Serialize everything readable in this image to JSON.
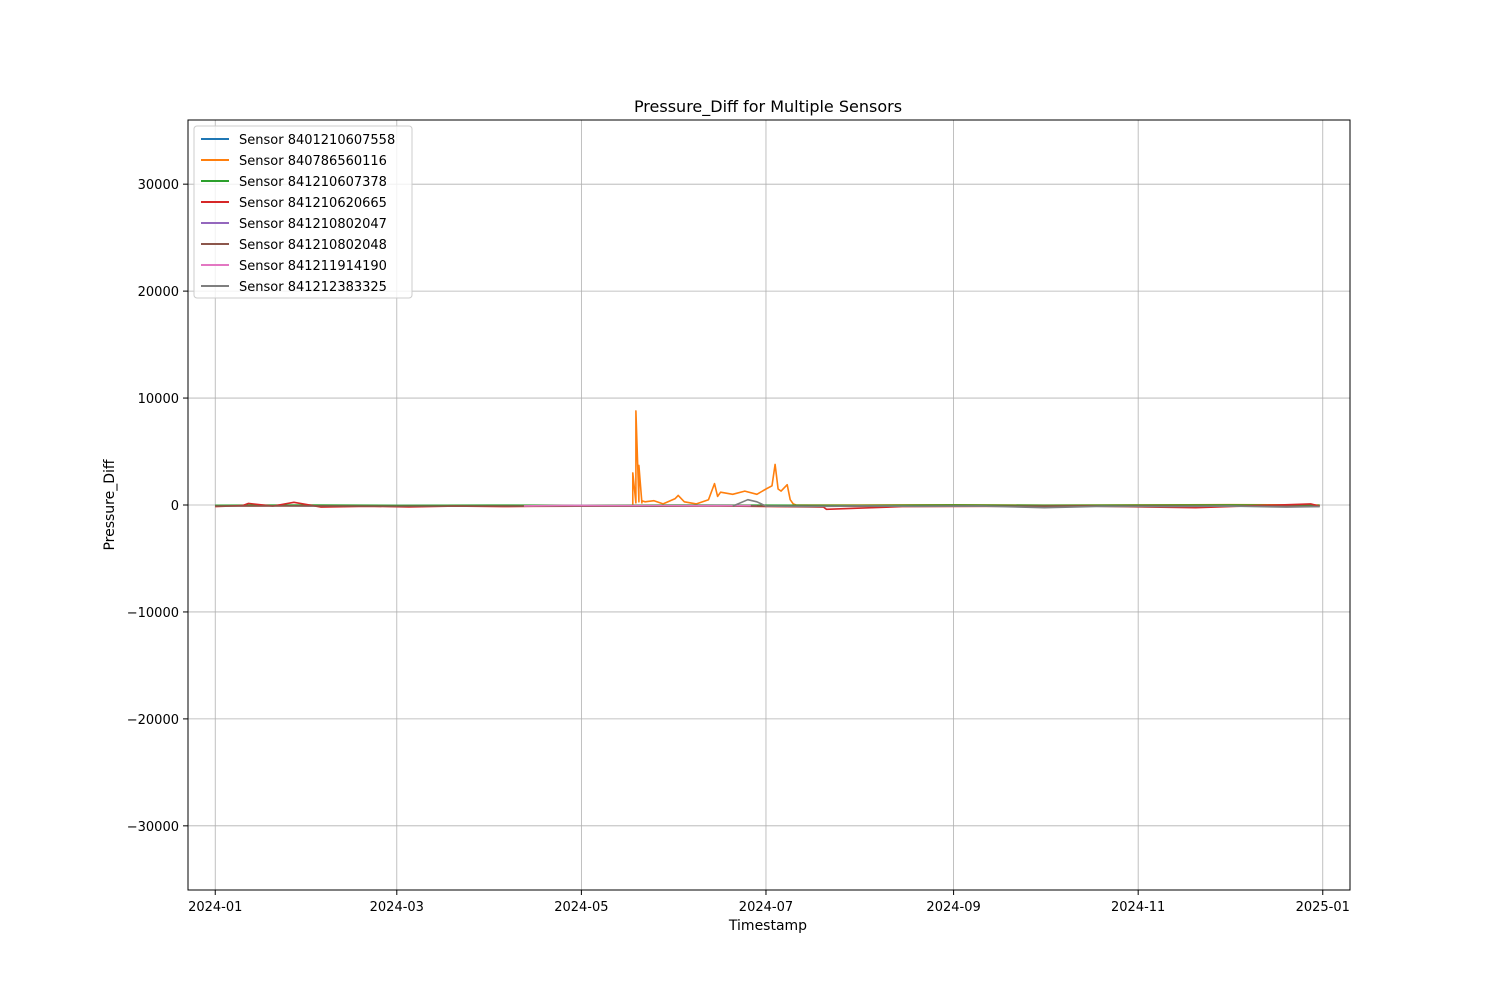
{
  "chart_data": {
    "type": "line",
    "title": "Pressure_Diff for Multiple Sensors",
    "xlabel": "Timestamp",
    "ylabel": "Pressure_Diff",
    "xlim": [
      "2023-12-23",
      "2025-01-10"
    ],
    "ylim": [
      -36000,
      36000
    ],
    "x_ticks": [
      "2024-01",
      "2024-03",
      "2024-05",
      "2024-07",
      "2024-09",
      "2024-11",
      "2025-01"
    ],
    "y_ticks": [
      -30000,
      -20000,
      -10000,
      0,
      10000,
      20000,
      30000
    ],
    "y_tick_labels": [
      "−30000",
      "−20000",
      "−10000",
      "0",
      "10000",
      "20000",
      "30000"
    ],
    "grid": true,
    "legend_position": "upper-left",
    "series": [
      {
        "name": "Sensor 8401210607558",
        "color": "#1f77b4",
        "x": [
          "2024-01-01",
          "2024-01-15",
          "2024-02-01",
          "2024-02-15",
          "2024-03-01",
          "2024-03-15",
          "2024-04-01",
          "2024-04-10"
        ],
        "y": [
          -60,
          -40,
          -80,
          -50,
          -70,
          -40,
          -60,
          -50
        ]
      },
      {
        "name": "Sensor 840786560116",
        "color": "#ff7f0e",
        "x": [
          "2024-05-18",
          "2024-05-18",
          "2024-05-19",
          "2024-05-19",
          "2024-05-20",
          "2024-05-20",
          "2024-05-21",
          "2024-05-21",
          "2024-05-22",
          "2024-05-25",
          "2024-05-28",
          "2024-06-01",
          "2024-06-02",
          "2024-06-04",
          "2024-06-08",
          "2024-06-12",
          "2024-06-14",
          "2024-06-15",
          "2024-06-16",
          "2024-06-20",
          "2024-06-24",
          "2024-06-28",
          "2024-07-01",
          "2024-07-03",
          "2024-07-04",
          "2024-07-05",
          "2024-07-06",
          "2024-07-08",
          "2024-07-09",
          "2024-07-10",
          "2024-07-11",
          "2024-08-01",
          "2024-09-01",
          "2024-10-01",
          "2024-11-01",
          "2024-12-01",
          "2024-12-31"
        ],
        "y": [
          0,
          3000,
          200,
          8800,
          300,
          3700,
          200,
          400,
          300,
          400,
          100,
          600,
          900,
          300,
          100,
          500,
          2000,
          800,
          1200,
          1000,
          1300,
          1000,
          1500,
          1800,
          3800,
          1500,
          1300,
          1900,
          500,
          100,
          0,
          0,
          20,
          -20,
          10,
          30,
          0
        ]
      },
      {
        "name": "Sensor 841210607378",
        "color": "#2ca02c",
        "x": [
          "2024-01-01",
          "2024-02-01",
          "2024-03-01",
          "2024-04-01",
          "2024-05-01",
          "2024-06-01",
          "2024-07-01",
          "2024-08-01",
          "2024-09-01",
          "2024-10-01",
          "2024-11-01",
          "2024-12-01",
          "2024-12-31"
        ],
        "y": [
          -30,
          -10,
          -40,
          -20,
          -30,
          -10,
          -20,
          -40,
          -10,
          -30,
          -20,
          -10,
          -30
        ]
      },
      {
        "name": "Sensor 841210620665",
        "color": "#d62728",
        "x": [
          "2024-01-01",
          "2024-01-10",
          "2024-01-12",
          "2024-01-20",
          "2024-01-27",
          "2024-02-05",
          "2024-02-20",
          "2024-03-05",
          "2024-03-20",
          "2024-04-05",
          "2024-04-15",
          "2024-05-15",
          "2024-06-15",
          "2024-07-20",
          "2024-07-21",
          "2024-08-15",
          "2024-09-15",
          "2024-10-15",
          "2024-11-20",
          "2024-12-28",
          "2024-12-31"
        ],
        "y": [
          -150,
          -60,
          150,
          -100,
          250,
          -200,
          -120,
          -180,
          -100,
          -150,
          -120,
          -100,
          -80,
          -200,
          -400,
          -150,
          -120,
          -100,
          -250,
          100,
          -100
        ]
      },
      {
        "name": "Sensor 841210802047",
        "color": "#9467bd",
        "x": [
          "2024-04-20",
          "2024-05-01",
          "2024-05-15",
          "2024-06-01",
          "2024-06-15",
          "2024-06-28"
        ],
        "y": [
          -80,
          -60,
          -90,
          -70,
          -60,
          -80
        ]
      },
      {
        "name": "Sensor 841210802048",
        "color": "#8c564b",
        "x": [
          "2024-01-01",
          "2024-02-01",
          "2024-03-01",
          "2024-04-01",
          "2024-05-01",
          "2024-06-01",
          "2024-07-01",
          "2024-08-01",
          "2024-09-01",
          "2024-10-01",
          "2024-11-01",
          "2024-12-01",
          "2024-12-31"
        ],
        "y": [
          -100,
          -80,
          -120,
          -90,
          -110,
          -100,
          -90,
          -120,
          -100,
          -110,
          -90,
          -100,
          -120
        ]
      },
      {
        "name": "Sensor 841211914190",
        "color": "#e377c2",
        "x": [
          "2024-04-12",
          "2024-04-25",
          "2024-05-10",
          "2024-05-25",
          "2024-06-10",
          "2024-06-26"
        ],
        "y": [
          -80,
          -40,
          -60,
          -50,
          -70,
          -60
        ]
      },
      {
        "name": "Sensor 841212383325",
        "color": "#7f7f7f",
        "x": [
          "2024-06-20",
          "2024-06-25",
          "2024-06-28",
          "2024-07-01",
          "2024-07-15",
          "2024-08-01",
          "2024-08-20",
          "2024-09-10",
          "2024-10-01",
          "2024-10-20",
          "2024-11-10",
          "2024-12-01",
          "2024-12-20",
          "2024-12-31"
        ],
        "y": [
          -100,
          500,
          300,
          -100,
          -150,
          -80,
          -120,
          -100,
          -250,
          -120,
          -150,
          -100,
          -200,
          -150
        ]
      }
    ]
  }
}
